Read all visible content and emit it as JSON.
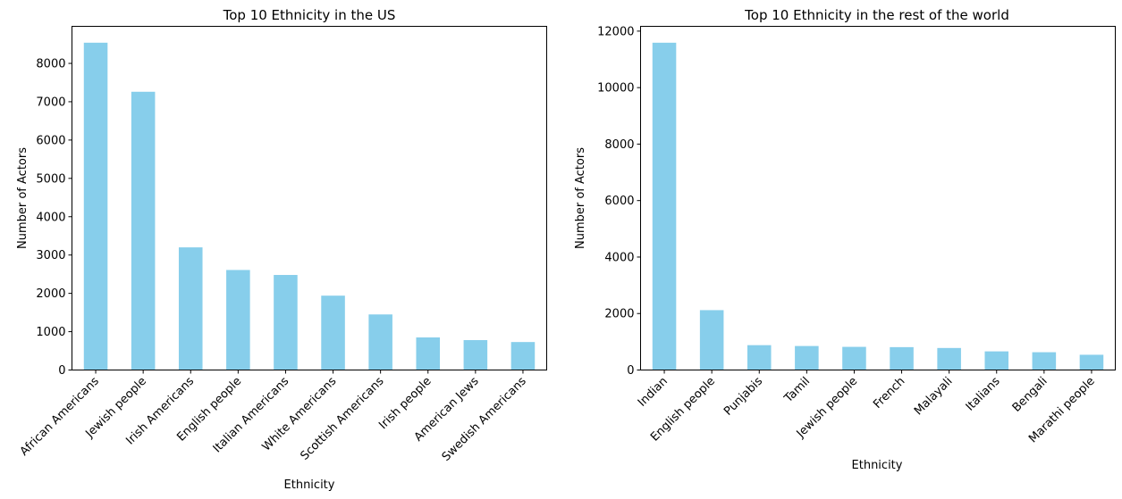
{
  "chart_data": [
    {
      "type": "bar",
      "title": "Top 10 Ethnicity in the US",
      "xlabel": "Ethnicity",
      "ylabel": "Number of Actors",
      "categories": [
        "African Americans",
        "Jewish people",
        "Irish Americans",
        "English people",
        "Italian Americans",
        "White Americans",
        "Scottish Americans",
        "Irish people",
        "American Jews",
        "Swedish Americans"
      ],
      "values": [
        8540,
        7260,
        3200,
        2610,
        2480,
        1940,
        1450,
        850,
        780,
        730
      ],
      "yticks": [
        0,
        1000,
        2000,
        3000,
        4000,
        5000,
        6000,
        7000,
        8000
      ],
      "ylim": [
        0,
        8967
      ],
      "color": "#87ceeb",
      "grid": false
    },
    {
      "type": "bar",
      "title": "Top 10 Ethnicity in the rest of the world",
      "xlabel": "Ethnicity",
      "ylabel": "Number of Actors",
      "categories": [
        "Indian",
        "English people",
        "Punjabis",
        "Tamil",
        "Jewish people",
        "French",
        "Malayali",
        "Italians",
        "Bengali",
        "Marathi people"
      ],
      "values": [
        11590,
        2120,
        880,
        850,
        820,
        810,
        780,
        660,
        630,
        540
      ],
      "yticks": [
        0,
        2000,
        4000,
        6000,
        8000,
        10000,
        12000
      ],
      "ylim": [
        0,
        12170
      ],
      "color": "#87ceeb",
      "grid": false
    }
  ]
}
